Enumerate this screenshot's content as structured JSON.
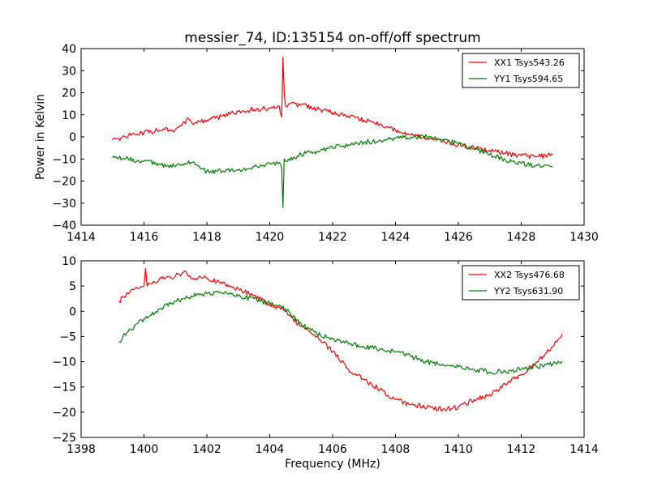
{
  "chart_data": [
    {
      "type": "line",
      "title": "messier_74, ID:135154 on-off/off spectrum",
      "xlabel": "",
      "ylabel": "Power in Kelvin",
      "xlim": [
        1414,
        1430
      ],
      "ylim": [
        -40,
        40
      ],
      "xticks": [
        1414,
        1416,
        1418,
        1420,
        1422,
        1424,
        1426,
        1428,
        1430
      ],
      "yticks": [
        -40,
        -30,
        -20,
        -10,
        0,
        10,
        20,
        30,
        40
      ],
      "grid": false,
      "legend_position": "top-right",
      "series": [
        {
          "name": "XX1 Tsys543.26",
          "color": "#ff0000",
          "x": [
            1415.0,
            1415.5,
            1416.0,
            1416.5,
            1417.0,
            1417.2,
            1417.4,
            1417.6,
            1418.0,
            1418.5,
            1419.0,
            1419.5,
            1420.0,
            1420.3,
            1420.38,
            1420.42,
            1420.46,
            1420.5,
            1420.6,
            1421.0,
            1421.5,
            1422.0,
            1422.5,
            1423.0,
            1423.5,
            1424.0,
            1424.5,
            1425.0,
            1425.5,
            1426.0,
            1426.5,
            1427.0,
            1427.5,
            1428.0,
            1428.5,
            1429.0
          ],
          "values": [
            -1.5,
            0.5,
            2.0,
            3.0,
            3.5,
            5.0,
            8.5,
            6.0,
            7.5,
            9.5,
            11.5,
            12.5,
            13.0,
            14.0,
            9.0,
            36.0,
            20.0,
            14.0,
            15.0,
            14.5,
            12.5,
            11.0,
            9.5,
            7.5,
            5.5,
            3.0,
            1.0,
            -1.0,
            -2.0,
            -3.5,
            -5.0,
            -6.0,
            -7.5,
            -8.5,
            -9.0,
            -8.0
          ]
        },
        {
          "name": "YY1 Tsys594.65",
          "color": "#008000",
          "x": [
            1415.0,
            1415.5,
            1416.0,
            1416.5,
            1417.0,
            1417.3,
            1417.5,
            1417.8,
            1418.0,
            1418.5,
            1419.0,
            1419.5,
            1420.0,
            1420.3,
            1420.38,
            1420.42,
            1420.46,
            1420.5,
            1420.6,
            1421.0,
            1421.5,
            1422.0,
            1422.5,
            1423.0,
            1423.5,
            1424.0,
            1424.5,
            1425.0,
            1425.5,
            1426.0,
            1426.5,
            1427.0,
            1427.5,
            1428.0,
            1428.5,
            1429.0
          ],
          "values": [
            -9.5,
            -10.0,
            -11.0,
            -12.5,
            -13.5,
            -12.0,
            -11.5,
            -14.5,
            -15.5,
            -15.5,
            -15.0,
            -13.5,
            -12.0,
            -11.5,
            -14.0,
            -32.0,
            -10.0,
            -11.0,
            -10.0,
            -8.0,
            -6.5,
            -5.0,
            -3.5,
            -2.5,
            -1.5,
            -0.5,
            0.0,
            0.0,
            -1.5,
            -3.0,
            -5.5,
            -8.0,
            -10.5,
            -12.0,
            -13.0,
            -13.5
          ]
        }
      ]
    },
    {
      "type": "line",
      "title": "",
      "xlabel": "Frequency (MHz)",
      "ylabel": "",
      "xlim": [
        1398,
        1414
      ],
      "ylim": [
        -25,
        10
      ],
      "xticks": [
        1398,
        1400,
        1402,
        1404,
        1406,
        1408,
        1410,
        1412,
        1414
      ],
      "yticks": [
        -25,
        -20,
        -15,
        -10,
        -5,
        0,
        5,
        10
      ],
      "grid": false,
      "legend_position": "top-right",
      "series": [
        {
          "name": "XX2 Tsys476.68",
          "color": "#ff0000",
          "x": [
            1399.2,
            1399.5,
            1399.8,
            1400.0,
            1400.05,
            1400.1,
            1400.5,
            1401.0,
            1401.2,
            1401.3,
            1401.5,
            1402.0,
            1402.5,
            1403.0,
            1403.5,
            1404.0,
            1404.5,
            1405.0,
            1405.5,
            1406.0,
            1406.5,
            1407.0,
            1407.5,
            1408.0,
            1408.5,
            1409.0,
            1409.5,
            1410.0,
            1410.5,
            1411.0,
            1411.5,
            1412.0,
            1412.5,
            1413.0,
            1413.3
          ],
          "values": [
            2.0,
            3.5,
            4.5,
            5.0,
            8.5,
            5.0,
            6.5,
            7.0,
            7.5,
            8.0,
            6.5,
            6.5,
            5.5,
            4.5,
            3.0,
            1.5,
            0.0,
            -3.0,
            -5.0,
            -8.0,
            -11.5,
            -13.5,
            -15.5,
            -17.5,
            -18.5,
            -19.0,
            -19.5,
            -19.0,
            -17.5,
            -16.5,
            -14.5,
            -12.5,
            -10.0,
            -7.0,
            -4.5
          ]
        },
        {
          "name": "YY2 Tsys631.90",
          "color": "#008000",
          "x": [
            1399.2,
            1399.5,
            1400.0,
            1400.5,
            1401.0,
            1401.5,
            1402.0,
            1402.5,
            1403.0,
            1403.5,
            1404.0,
            1404.5,
            1405.0,
            1405.5,
            1406.0,
            1406.5,
            1407.0,
            1407.5,
            1408.0,
            1408.5,
            1409.0,
            1409.5,
            1410.0,
            1410.5,
            1411.0,
            1411.5,
            1412.0,
            1412.5,
            1413.0,
            1413.3
          ],
          "values": [
            -6.0,
            -4.0,
            -1.5,
            0.5,
            2.0,
            3.0,
            3.5,
            3.5,
            3.0,
            2.5,
            1.5,
            0.5,
            -2.5,
            -4.5,
            -5.5,
            -6.5,
            -7.0,
            -7.5,
            -8.0,
            -9.0,
            -10.0,
            -10.5,
            -11.0,
            -11.5,
            -12.0,
            -12.0,
            -11.5,
            -11.0,
            -10.5,
            -10.0
          ]
        }
      ]
    }
  ]
}
